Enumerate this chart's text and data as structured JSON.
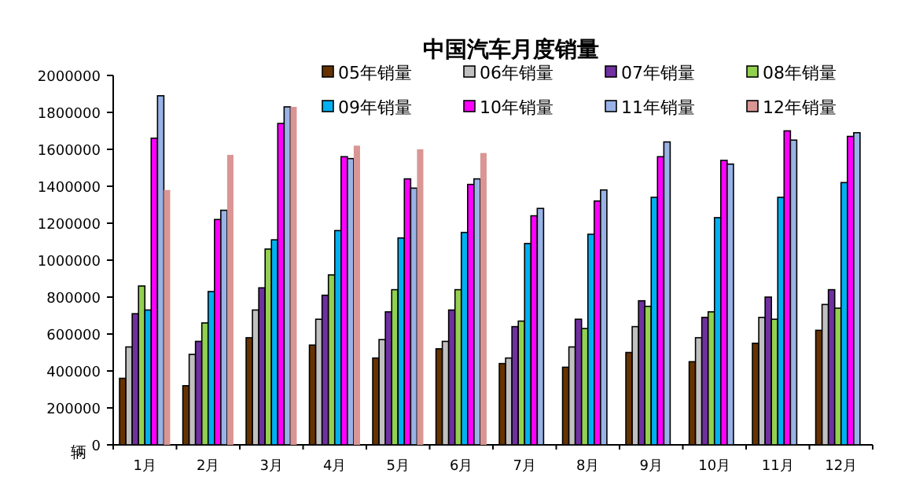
{
  "chart_data": {
    "type": "bar",
    "title": "中国汽车月度销量",
    "ylabel": "辆",
    "categories": [
      "1月",
      "2月",
      "3月",
      "4月",
      "5月",
      "6月",
      "7月",
      "8月",
      "9月",
      "10月",
      "11月",
      "12月"
    ],
    "series": [
      {
        "name": "05年销量",
        "color": "#663300",
        "values": [
          360000,
          320000,
          580000,
          540000,
          470000,
          520000,
          440000,
          420000,
          500000,
          450000,
          550000,
          620000
        ]
      },
      {
        "name": "06年销量",
        "color": "#c0c0c0",
        "values": [
          530000,
          490000,
          730000,
          680000,
          570000,
          560000,
          470000,
          530000,
          640000,
          580000,
          690000,
          760000
        ]
      },
      {
        "name": "07年销量",
        "color": "#7030a0",
        "values": [
          710000,
          560000,
          850000,
          810000,
          720000,
          730000,
          640000,
          680000,
          780000,
          690000,
          800000,
          840000
        ]
      },
      {
        "name": "08年销量",
        "color": "#92d050",
        "values": [
          860000,
          660000,
          1060000,
          920000,
          840000,
          840000,
          670000,
          630000,
          750000,
          720000,
          680000,
          740000
        ]
      },
      {
        "name": "09年销量",
        "color": "#00b0f0",
        "values": [
          730000,
          830000,
          1110000,
          1160000,
          1120000,
          1150000,
          1090000,
          1140000,
          1340000,
          1230000,
          1340000,
          1420000
        ]
      },
      {
        "name": "10年销量",
        "color": "#ff00ff",
        "values": [
          1660000,
          1220000,
          1740000,
          1560000,
          1440000,
          1410000,
          1240000,
          1320000,
          1560000,
          1540000,
          1700000,
          1670000
        ]
      },
      {
        "name": "11年销量",
        "color": "#99b3e6",
        "values": [
          1890000,
          1270000,
          1830000,
          1550000,
          1390000,
          1440000,
          1280000,
          1380000,
          1640000,
          1520000,
          1650000,
          1690000
        ]
      },
      {
        "name": "12年销量",
        "color": "#d99694",
        "values": [
          1380000,
          1570000,
          1830000,
          1620000,
          1600000,
          1580000,
          null,
          null,
          null,
          null,
          null,
          null
        ]
      }
    ],
    "ylim": [
      0,
      2000000
    ],
    "yticks": [
      0,
      200000,
      400000,
      600000,
      800000,
      1000000,
      1200000,
      1400000,
      1600000,
      1800000,
      2000000
    ],
    "legend": "top right",
    "grid": false
  }
}
